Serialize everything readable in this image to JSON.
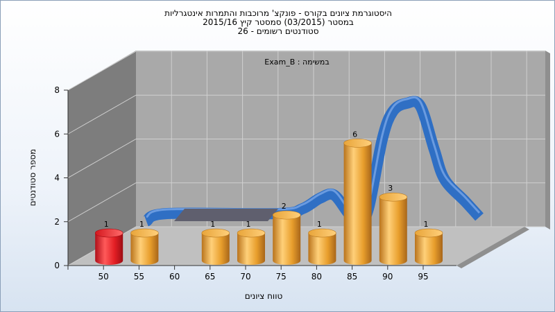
{
  "chart_data": {
    "type": "bar",
    "title_lines": [
      "היסטוגרמת ציונים בקורס - פונקצ' מרוכבות והתמרות אינטגרליות",
      "במסטר  (03/2015)  סמסטר קיץ  2015/16",
      "סטודנטים רשומים - 26"
    ],
    "annotation": "Exam_B : במשימה",
    "xlabel": "טווח ציונים",
    "ylabel": "מספר סטודנטים",
    "categories": [
      "50",
      "55",
      "60",
      "65",
      "70",
      "75",
      "80",
      "85",
      "90",
      "95"
    ],
    "values": [
      1,
      1,
      0,
      1,
      1,
      2,
      1,
      6,
      3,
      1
    ],
    "data_labels": [
      "1",
      "1",
      "",
      "1",
      "1",
      "2",
      "1",
      "6",
      "3",
      "1"
    ],
    "ylim": [
      0,
      8
    ],
    "yticks": [
      "0",
      "2",
      "4",
      "6",
      "8"
    ],
    "grid": true,
    "highlight_index": 0,
    "colors": {
      "bar": "#f0a830",
      "bar_highlight": "#e31e24",
      "curve": "#2f6fc4",
      "wall": "#a9a9a9",
      "floor": "#c0c0c0",
      "side_wall": "#7d7d7d"
    }
  }
}
